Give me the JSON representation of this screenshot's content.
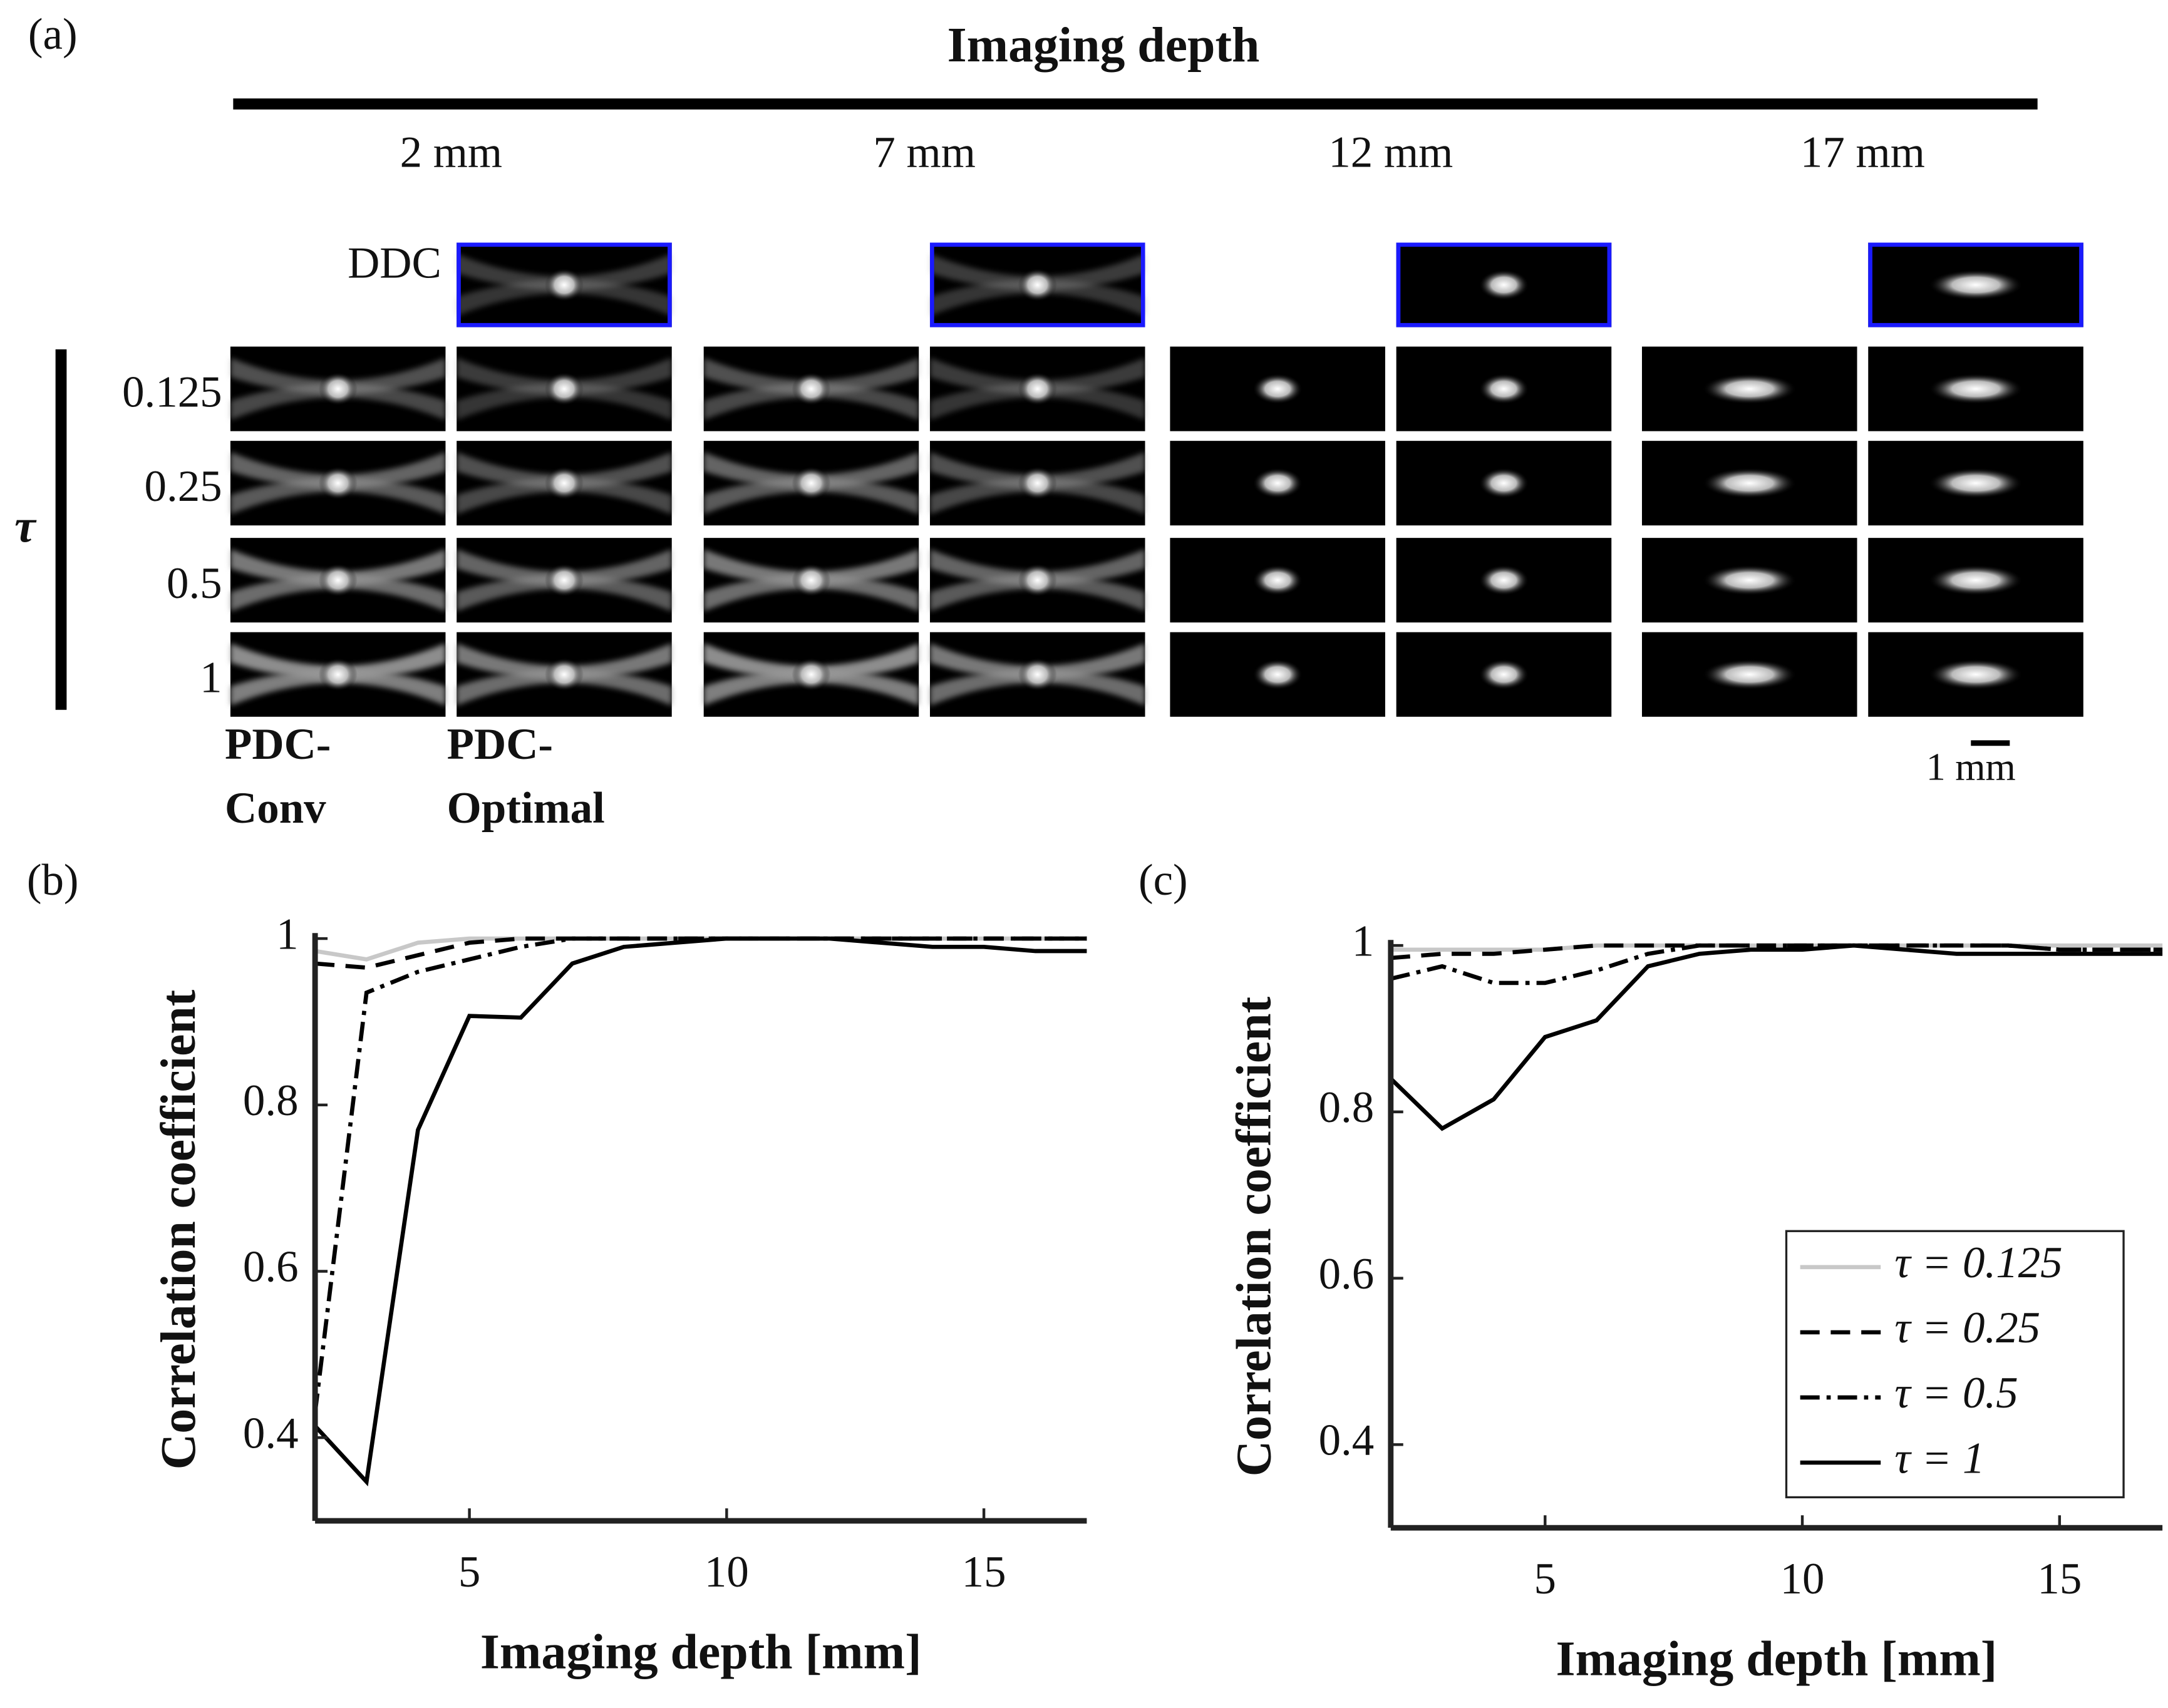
{
  "figure_a": {
    "label": "(a)",
    "title": "Imaging depth",
    "depths": [
      "2 mm",
      "7 mm",
      "12 mm",
      "17 mm"
    ],
    "reference_row": "DDC",
    "tau_symbol": "τ",
    "tau_rows": [
      "0.125",
      "0.25",
      "0.5",
      "1"
    ],
    "columns": [
      [
        "PDC-",
        "Conv"
      ],
      [
        "PDC-",
        "Optimal"
      ]
    ],
    "scale_bar": "1 mm"
  },
  "chart_data": [
    {
      "type": "line",
      "label": "(b)",
      "x_label": "Imaging depth [mm]",
      "y_label": "Correlation coefficient",
      "x": [
        2,
        3,
        4,
        5,
        6,
        7,
        8,
        9,
        10,
        11,
        12,
        13,
        14,
        15,
        16,
        17
      ],
      "xlim": [
        2,
        17
      ],
      "xticks": [
        5,
        10,
        15
      ],
      "ylim": [
        0.3,
        1
      ],
      "yticks": [
        0.4,
        0.6,
        0.8,
        1
      ],
      "legend": false,
      "series": [
        {
          "name": "τ = 0.125",
          "color": "#c8c8c8",
          "dash": "solid",
          "values": [
            0.985,
            0.975,
            0.995,
            1,
            1,
            1,
            1,
            1,
            1,
            1,
            1,
            1,
            1,
            1,
            1,
            1
          ]
        },
        {
          "name": "τ = 0.25",
          "color": "#000000",
          "dash": "dashed",
          "values": [
            0.97,
            0.965,
            0.98,
            0.995,
            1,
            1,
            1,
            1,
            1,
            1,
            1,
            1,
            1,
            1,
            1,
            1
          ]
        },
        {
          "name": "τ = 0.5",
          "color": "#000000",
          "dash": "dashdot",
          "values": [
            0.43,
            0.935,
            0.96,
            0.975,
            0.99,
            1,
            1,
            1,
            1,
            1,
            1,
            1,
            1,
            1,
            1,
            1
          ]
        },
        {
          "name": "τ = 1",
          "color": "#000000",
          "dash": "solid",
          "values": [
            0.414,
            0.347,
            0.77,
            0.907,
            0.905,
            0.97,
            0.99,
            0.995,
            1,
            1,
            1,
            0.995,
            0.99,
            0.99,
            0.985,
            0.985
          ]
        }
      ]
    },
    {
      "type": "line",
      "label": "(c)",
      "x_label": "Imaging depth [mm]",
      "y_label": "Correlation coefficient",
      "x": [
        2,
        3,
        4,
        5,
        6,
        7,
        8,
        9,
        10,
        11,
        12,
        13,
        14,
        15,
        16,
        17
      ],
      "xlim": [
        2,
        17
      ],
      "xticks": [
        5,
        10,
        15
      ],
      "ylim": [
        0.3,
        1
      ],
      "yticks": [
        0.4,
        0.6,
        0.8,
        1
      ],
      "legend": "lower right",
      "series": [
        {
          "name": "τ = 0.125",
          "color": "#c8c8c8",
          "dash": "solid",
          "values": [
            0.995,
            0.995,
            0.995,
            0.995,
            1,
            1,
            1,
            1,
            1,
            1,
            1,
            1,
            1,
            1,
            1,
            1
          ]
        },
        {
          "name": "τ = 0.25",
          "color": "#000000",
          "dash": "dashed",
          "values": [
            0.985,
            0.99,
            0.99,
            0.995,
            1,
            1,
            1,
            1,
            1,
            1,
            1,
            1,
            1,
            0.995,
            0.995,
            0.995
          ]
        },
        {
          "name": "τ = 0.5",
          "color": "#000000",
          "dash": "dashdot",
          "values": [
            0.96,
            0.975,
            0.955,
            0.955,
            0.97,
            0.99,
            1,
            1,
            1,
            1,
            1,
            1,
            1,
            0.995,
            0.995,
            0.995
          ]
        },
        {
          "name": "τ = 1",
          "color": "#000000",
          "dash": "solid",
          "values": [
            0.84,
            0.78,
            0.815,
            0.89,
            0.91,
            0.975,
            0.99,
            0.995,
            0.995,
            1,
            0.995,
            0.99,
            0.99,
            0.99,
            0.99,
            0.99
          ]
        }
      ]
    }
  ]
}
